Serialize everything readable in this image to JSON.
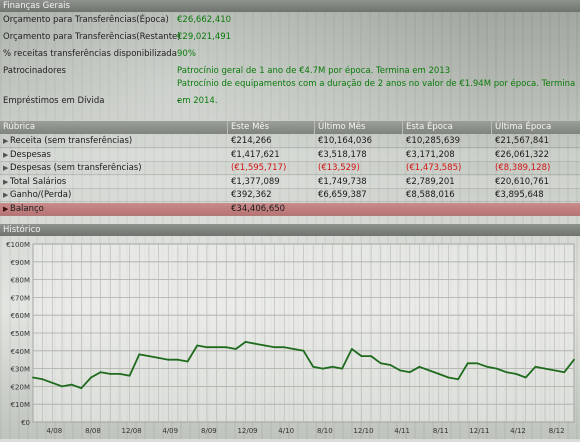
{
  "general": {
    "title": "Finanças Gerais",
    "rows": [
      {
        "label": "Orçamento para Transferências(Época)",
        "value": "€26,662,410"
      },
      {
        "label": "Orçamento para Transferências(Restante)",
        "value": "€29,021,491"
      },
      {
        "label": "% receitas transferências disponibilizada",
        "value": "90%"
      },
      {
        "label": "Patrocinadores",
        "value": "Patrocínio geral de 1 ano de €4.7M por época. Termina em 2013"
      },
      {
        "label": "",
        "value": "Patrocínio de equipamentos com a duração de 2 anos no valor de €1.94M por época. Termina em 2014."
      },
      {
        "label": "Empréstimos em Dívida",
        "value": "-"
      }
    ]
  },
  "table": {
    "headers": [
      "Rúbrica",
      "Este Mês",
      "Último Mês",
      "Esta Época",
      "Última Época"
    ],
    "rows": [
      {
        "name": "Receita (sem transferências)",
        "expandable": true,
        "cells": [
          "€214,266",
          "€10,164,036",
          "€10,285,639",
          "€21,567,841"
        ],
        "negative": [
          false,
          false,
          false,
          false
        ]
      },
      {
        "name": "Despesas",
        "expandable": true,
        "cells": [
          "€1,417,621",
          "€3,518,178",
          "€3,171,208",
          "€26,061,322"
        ],
        "negative": [
          false,
          false,
          false,
          false
        ]
      },
      {
        "name": "Despesas (sem transferências)",
        "expandable": true,
        "cells": [
          "(€1,595,717)",
          "(€13,529)",
          "(€1,473,585)",
          "(€8,389,128)"
        ],
        "negative": [
          true,
          true,
          true,
          true
        ]
      },
      {
        "name": "Total Salários",
        "expandable": true,
        "cells": [
          "€1,377,089",
          "€1,749,738",
          "€2,789,201",
          "€20,610,761"
        ],
        "negative": [
          false,
          false,
          false,
          false
        ]
      },
      {
        "name": "Ganho/(Perda)",
        "expandable": true,
        "cells": [
          "€392,362",
          "€6,659,387",
          "€8,588,016",
          "€3,895,648"
        ],
        "negative": [
          false,
          false,
          false,
          false
        ]
      },
      {
        "name": "Balanço",
        "expandable": true,
        "cells": [
          "€34,406,650",
          "",
          "",
          ""
        ],
        "negative": [
          false,
          false,
          false,
          false
        ],
        "highlight": true
      }
    ]
  },
  "history": {
    "title": "Histórico"
  },
  "chart_data": {
    "type": "line",
    "title": "",
    "yticks": [
      "€0",
      "€10M",
      "€20M",
      "€30M",
      "€40M",
      "€50M",
      "€60M",
      "€70M",
      "€80M",
      "€90M",
      "€100M"
    ],
    "ylim": [
      0,
      100
    ],
    "xticks": [
      "4/08",
      "8/08",
      "12/08",
      "4/09",
      "8/09",
      "12/09",
      "4/10",
      "8/10",
      "12/10",
      "4/11",
      "8/11",
      "12/11",
      "4/12",
      "8/12",
      "12/12"
    ],
    "line_color": "#1e6b1e",
    "series": [
      {
        "values": [
          25,
          24,
          22,
          20,
          21,
          19,
          25,
          28,
          27,
          27,
          26,
          38,
          37,
          36,
          35,
          35,
          34,
          43,
          42,
          42,
          42,
          41,
          45,
          44,
          43,
          42,
          42,
          41,
          40,
          31,
          30,
          31,
          30,
          41,
          37,
          37,
          33,
          32,
          29,
          28,
          31,
          29,
          27,
          25,
          24,
          33,
          33,
          31,
          30,
          28,
          27,
          25,
          31,
          30,
          29,
          28,
          35
        ]
      }
    ]
  }
}
